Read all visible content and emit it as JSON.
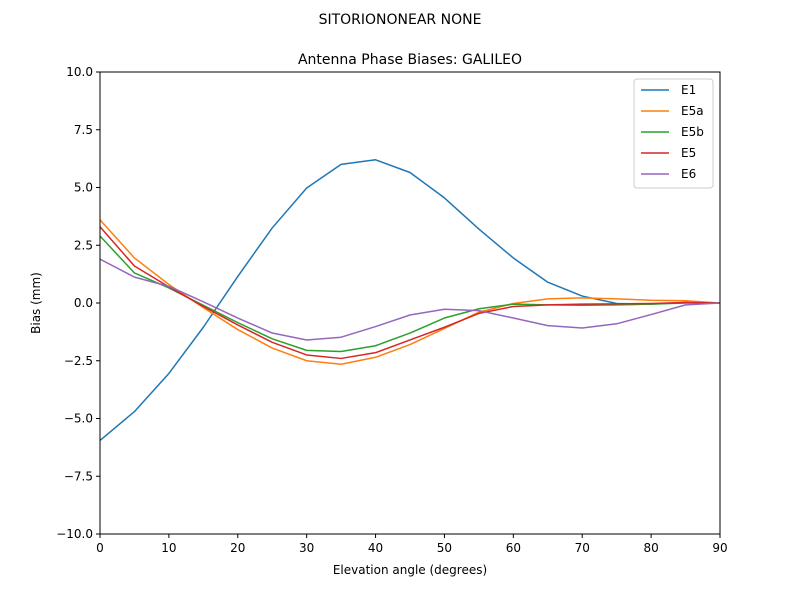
{
  "figure": {
    "suptitle": "SITORIONONEAR   NONE"
  },
  "chart_data": {
    "type": "line",
    "title": "Antenna Phase Biases: GALILEO",
    "xlabel": "Elevation angle (degrees)",
    "ylabel": "Bias (mm)",
    "xlim": [
      0,
      90
    ],
    "ylim": [
      -10,
      10
    ],
    "xticks": [
      0,
      10,
      20,
      30,
      40,
      50,
      60,
      70,
      80,
      90
    ],
    "xtick_labels": [
      "0",
      "10",
      "20",
      "30",
      "40",
      "50",
      "60",
      "70",
      "80",
      "90"
    ],
    "yticks": [
      -10,
      -7.5,
      -5,
      -2.5,
      0,
      2.5,
      5,
      7.5,
      10
    ],
    "ytick_labels": [
      "−10.0",
      "−7.5",
      "−5.0",
      "−2.5",
      "0.0",
      "2.5",
      "5.0",
      "7.5",
      "10.0"
    ],
    "grid": false,
    "legend_position": "top-right",
    "x": [
      0,
      5,
      10,
      15,
      20,
      25,
      30,
      35,
      40,
      45,
      50,
      55,
      60,
      65,
      70,
      75,
      80,
      85,
      90
    ],
    "series": [
      {
        "name": "E1",
        "color": "#1f77b4",
        "values": [
          -5.95,
          -4.7,
          -3.05,
          -1.05,
          1.15,
          3.25,
          4.98,
          6.0,
          6.2,
          5.65,
          4.55,
          3.2,
          1.95,
          0.9,
          0.3,
          -0.02,
          -0.05,
          0.02,
          0.0
        ]
      },
      {
        "name": "E5a",
        "color": "#ff7f0e",
        "values": [
          3.6,
          1.95,
          0.8,
          -0.2,
          -1.15,
          -1.95,
          -2.5,
          -2.65,
          -2.35,
          -1.8,
          -1.1,
          -0.4,
          -0.02,
          0.18,
          0.22,
          0.18,
          0.12,
          0.1,
          0.0
        ]
      },
      {
        "name": "E5b",
        "color": "#2ca02c",
        "values": [
          2.9,
          1.3,
          0.65,
          -0.1,
          -0.85,
          -1.55,
          -2.05,
          -2.1,
          -1.85,
          -1.3,
          -0.65,
          -0.25,
          -0.05,
          -0.08,
          -0.1,
          -0.08,
          -0.05,
          0.0,
          0.0
        ]
      },
      {
        "name": "E5",
        "color": "#d62728",
        "values": [
          3.3,
          1.6,
          0.7,
          -0.15,
          -0.95,
          -1.7,
          -2.25,
          -2.4,
          -2.15,
          -1.6,
          -1.05,
          -0.45,
          -0.15,
          -0.08,
          -0.05,
          -0.04,
          -0.02,
          0.02,
          0.0
        ]
      },
      {
        "name": "E6",
        "color": "#9467bd",
        "values": [
          1.9,
          1.12,
          0.72,
          0.05,
          -0.65,
          -1.3,
          -1.6,
          -1.48,
          -1.02,
          -0.52,
          -0.27,
          -0.33,
          -0.65,
          -0.98,
          -1.08,
          -0.9,
          -0.5,
          -0.08,
          0.0
        ]
      }
    ]
  }
}
